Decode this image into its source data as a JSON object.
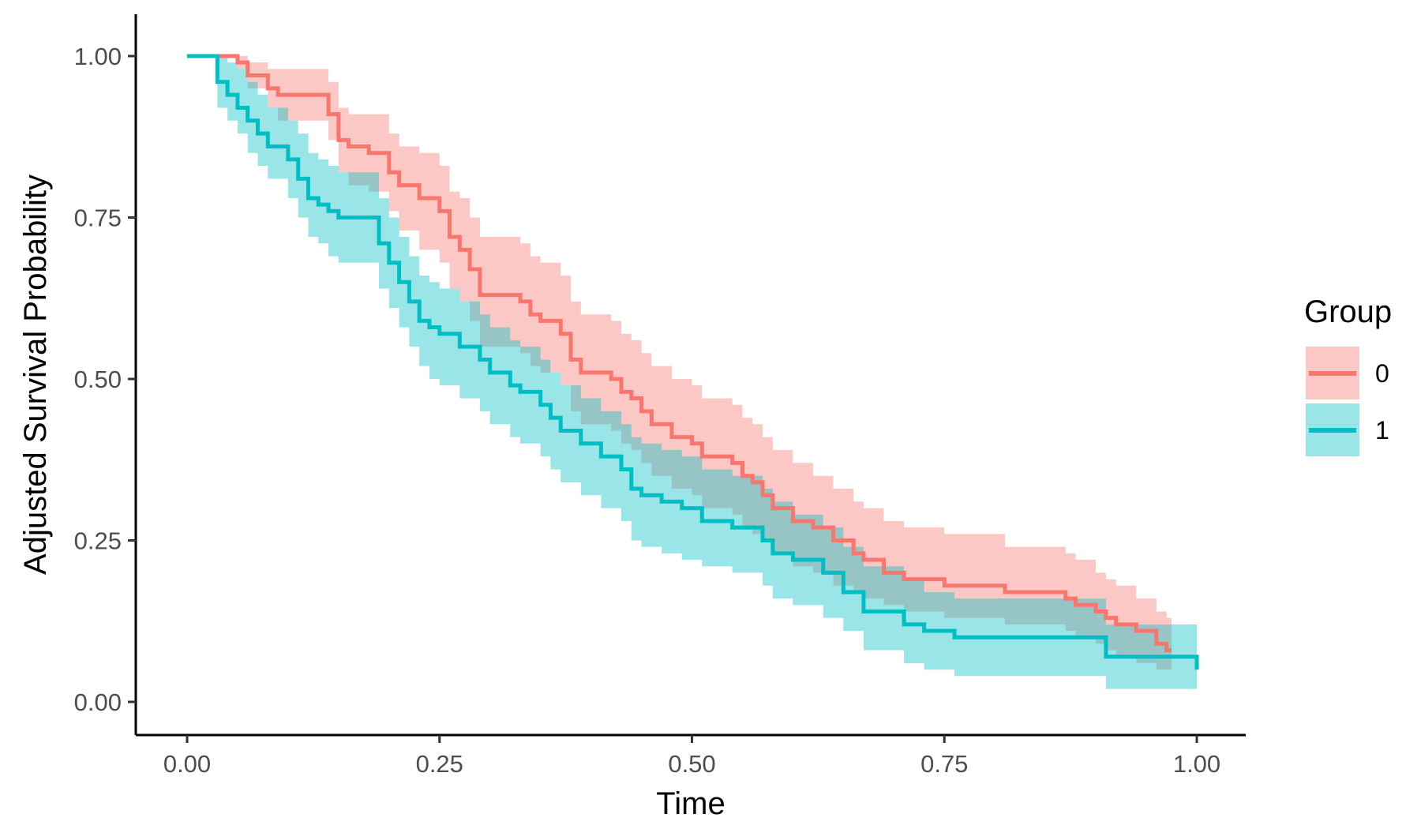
{
  "chart_data": {
    "type": "line",
    "subtype": "step",
    "title": "",
    "xlabel": "Time",
    "ylabel": "Adjusted Survival Probability",
    "xlim": [
      -0.1,
      1.05
    ],
    "ylim": [
      -0.05,
      1.06
    ],
    "x_ticks": [
      0,
      0.25,
      0.5,
      0.75,
      1.0
    ],
    "x_tick_labels": [
      "0.00",
      "0.25",
      "0.50",
      "0.75",
      "1.00"
    ],
    "y_ticks": [
      0,
      0.25,
      0.5,
      0.75,
      1.0
    ],
    "y_tick_labels": [
      "0.00",
      "0.25",
      "0.50",
      "0.75",
      "1.00"
    ],
    "grid": false,
    "legend": {
      "title": "Group",
      "placement": "right"
    },
    "series": [
      {
        "name": "0",
        "color": "#F8766D",
        "x": [
          0,
          0.05,
          0.06,
          0.08,
          0.09,
          0.14,
          0.15,
          0.16,
          0.18,
          0.2,
          0.21,
          0.23,
          0.25,
          0.26,
          0.27,
          0.28,
          0.29,
          0.33,
          0.34,
          0.35,
          0.37,
          0.38,
          0.39,
          0.42,
          0.43,
          0.44,
          0.45,
          0.46,
          0.48,
          0.5,
          0.51,
          0.54,
          0.55,
          0.56,
          0.57,
          0.58,
          0.6,
          0.62,
          0.64,
          0.66,
          0.67,
          0.69,
          0.71,
          0.75,
          0.81,
          0.87,
          0.88,
          0.9,
          0.91,
          0.92,
          0.94,
          0.96,
          0.97
        ],
        "y": [
          1.0,
          0.99,
          0.97,
          0.95,
          0.94,
          0.91,
          0.87,
          0.86,
          0.85,
          0.82,
          0.8,
          0.78,
          0.76,
          0.72,
          0.7,
          0.67,
          0.63,
          0.62,
          0.6,
          0.59,
          0.57,
          0.53,
          0.51,
          0.5,
          0.48,
          0.47,
          0.45,
          0.43,
          0.41,
          0.4,
          0.38,
          0.37,
          0.35,
          0.34,
          0.32,
          0.3,
          0.28,
          0.27,
          0.25,
          0.23,
          0.22,
          0.2,
          0.19,
          0.18,
          0.17,
          0.16,
          0.15,
          0.14,
          0.13,
          0.12,
          0.11,
          0.09,
          0.08
        ],
        "lower": [
          1.0,
          0.98,
          0.95,
          0.92,
          0.9,
          0.87,
          0.82,
          0.8,
          0.79,
          0.76,
          0.73,
          0.7,
          0.68,
          0.64,
          0.62,
          0.59,
          0.55,
          0.54,
          0.52,
          0.51,
          0.49,
          0.45,
          0.43,
          0.42,
          0.4,
          0.39,
          0.37,
          0.35,
          0.33,
          0.32,
          0.3,
          0.29,
          0.27,
          0.26,
          0.25,
          0.23,
          0.21,
          0.2,
          0.18,
          0.17,
          0.16,
          0.15,
          0.14,
          0.13,
          0.12,
          0.11,
          0.1,
          0.09,
          0.08,
          0.07,
          0.06,
          0.05,
          0.05
        ],
        "upper": [
          1.0,
          1.0,
          0.99,
          0.98,
          0.98,
          0.96,
          0.92,
          0.91,
          0.91,
          0.88,
          0.86,
          0.85,
          0.83,
          0.79,
          0.78,
          0.75,
          0.72,
          0.71,
          0.69,
          0.68,
          0.66,
          0.62,
          0.6,
          0.59,
          0.57,
          0.56,
          0.54,
          0.52,
          0.5,
          0.49,
          0.47,
          0.46,
          0.44,
          0.43,
          0.41,
          0.39,
          0.37,
          0.35,
          0.33,
          0.31,
          0.3,
          0.28,
          0.27,
          0.26,
          0.24,
          0.23,
          0.22,
          0.2,
          0.19,
          0.18,
          0.16,
          0.14,
          0.13
        ]
      },
      {
        "name": "1",
        "color": "#00BFC4",
        "x": [
          0,
          0.03,
          0.04,
          0.05,
          0.06,
          0.07,
          0.08,
          0.1,
          0.11,
          0.12,
          0.13,
          0.14,
          0.15,
          0.19,
          0.2,
          0.21,
          0.22,
          0.23,
          0.24,
          0.25,
          0.27,
          0.29,
          0.3,
          0.32,
          0.33,
          0.35,
          0.36,
          0.37,
          0.39,
          0.41,
          0.43,
          0.44,
          0.45,
          0.47,
          0.49,
          0.51,
          0.54,
          0.57,
          0.58,
          0.6,
          0.63,
          0.65,
          0.67,
          0.71,
          0.73,
          0.76,
          0.91,
          1.0
        ],
        "y": [
          1.0,
          0.96,
          0.94,
          0.92,
          0.9,
          0.88,
          0.86,
          0.84,
          0.81,
          0.78,
          0.77,
          0.76,
          0.75,
          0.71,
          0.68,
          0.65,
          0.62,
          0.59,
          0.58,
          0.57,
          0.55,
          0.53,
          0.51,
          0.49,
          0.48,
          0.46,
          0.44,
          0.42,
          0.4,
          0.38,
          0.36,
          0.33,
          0.32,
          0.31,
          0.3,
          0.28,
          0.27,
          0.25,
          0.23,
          0.22,
          0.2,
          0.17,
          0.14,
          0.12,
          0.11,
          0.1,
          0.07,
          0.05
        ],
        "lower": [
          1.0,
          0.92,
          0.9,
          0.88,
          0.85,
          0.83,
          0.81,
          0.78,
          0.75,
          0.72,
          0.71,
          0.69,
          0.68,
          0.64,
          0.61,
          0.58,
          0.55,
          0.52,
          0.5,
          0.49,
          0.47,
          0.45,
          0.43,
          0.41,
          0.4,
          0.38,
          0.36,
          0.34,
          0.32,
          0.3,
          0.28,
          0.25,
          0.24,
          0.23,
          0.22,
          0.21,
          0.2,
          0.18,
          0.16,
          0.15,
          0.13,
          0.11,
          0.08,
          0.06,
          0.05,
          0.04,
          0.02,
          0.02
        ],
        "upper": [
          1.0,
          1.0,
          0.99,
          0.98,
          0.96,
          0.94,
          0.92,
          0.9,
          0.88,
          0.85,
          0.84,
          0.83,
          0.82,
          0.78,
          0.75,
          0.72,
          0.69,
          0.66,
          0.65,
          0.64,
          0.62,
          0.6,
          0.58,
          0.56,
          0.55,
          0.53,
          0.51,
          0.49,
          0.47,
          0.45,
          0.43,
          0.41,
          0.4,
          0.39,
          0.38,
          0.36,
          0.35,
          0.33,
          0.31,
          0.29,
          0.27,
          0.24,
          0.21,
          0.19,
          0.17,
          0.16,
          0.12,
          0.12
        ]
      }
    ]
  }
}
